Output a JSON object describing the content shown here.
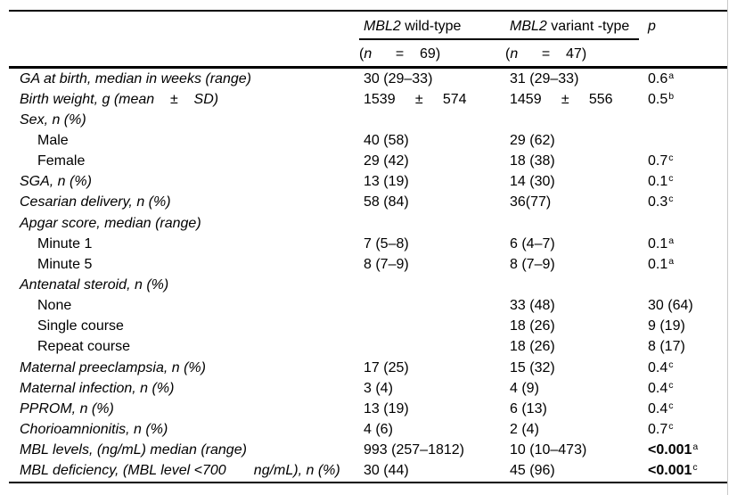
{
  "table": {
    "header": {
      "groups": [
        {
          "gene": "MBL2",
          "type": " wild-type",
          "count_open": "(",
          "count_n": "n",
          "count_rest": "      =    69)"
        },
        {
          "gene": "MBL2",
          "type": " variant -type",
          "count_open": "(",
          "count_n": "n",
          "count_rest": "      =    47)"
        }
      ],
      "p_label": "p"
    },
    "rows": [
      {
        "label": "GA at birth, median in weeks (range)",
        "indent": false,
        "wild": "30 (29–33)",
        "variant": "31 (29–33)",
        "p": "0.6",
        "sup": "a",
        "bold": false
      },
      {
        "label": "Birth weight, g (mean    ±    SD)",
        "indent": false,
        "wild": "1539     ±     574",
        "variant": "1459     ±     556",
        "p": "0.5",
        "sup": "b",
        "bold": false
      },
      {
        "label": "Sex, n (%)",
        "indent": false,
        "wild": "",
        "variant": "",
        "p": "",
        "sup": "",
        "bold": false
      },
      {
        "label": "Male",
        "indent": true,
        "wild": "40 (58)",
        "variant": "29 (62)",
        "p": "",
        "sup": "",
        "bold": false
      },
      {
        "label": "Female",
        "indent": true,
        "wild": "29 (42)",
        "variant": "18 (38)",
        "p": "0.7",
        "sup": "c",
        "bold": false
      },
      {
        "label": "SGA, n (%)",
        "indent": false,
        "wild": "13 (19)",
        "variant": "14 (30)",
        "p": "0.1",
        "sup": "c",
        "bold": false
      },
      {
        "label": "Cesarian delivery, n (%)",
        "indent": false,
        "wild": "58 (84)",
        "variant": "36(77)",
        "p": "0.3",
        "sup": "c",
        "bold": false
      },
      {
        "label": "Apgar score, median (range)",
        "indent": false,
        "wild": "",
        "variant": "",
        "p": "",
        "sup": "",
        "bold": false
      },
      {
        "label": "Minute 1",
        "indent": true,
        "wild": "7 (5–8)",
        "variant": "6 (4–7)",
        "p": "0.1",
        "sup": "a",
        "bold": false
      },
      {
        "label": "Minute 5",
        "indent": true,
        "wild": "8 (7–9)",
        "variant": "8 (7–9)",
        "p": "0.1",
        "sup": "a",
        "bold": false
      },
      {
        "label": "Antenatal steroid, n (%)",
        "indent": false,
        "wild": "",
        "variant": "",
        "p": "",
        "sup": "",
        "bold": false
      },
      {
        "label": "None",
        "indent": true,
        "wild": "",
        "variant": "33 (48)",
        "p": "30 (64)",
        "sup": "",
        "bold": false
      },
      {
        "label": "Single course",
        "indent": true,
        "wild": "",
        "variant": "18 (26)",
        "p": "9 (19)",
        "sup": "",
        "bold": false
      },
      {
        "label": "Repeat course",
        "indent": true,
        "wild": "",
        "variant": "18 (26)",
        "p": "8 (17)",
        "sup": "",
        "bold": false
      },
      {
        "label": "Maternal preeclampsia, n (%)",
        "indent": false,
        "wild": "17 (25)",
        "variant": "15 (32)",
        "p": "0.4",
        "sup": "c",
        "bold": false
      },
      {
        "label": "Maternal infection, n (%)",
        "indent": false,
        "wild": "3 (4)",
        "variant": "4 (9)",
        "p": "0.4",
        "sup": "c",
        "bold": false
      },
      {
        "label": "PPROM, n (%)",
        "indent": false,
        "wild": "13 (19)",
        "variant": "6 (13)",
        "p": "0.4",
        "sup": "c",
        "bold": false
      },
      {
        "label": "Chorioamnionitis, n (%)",
        "indent": false,
        "wild": "4 (6)",
        "variant": "2 (4)",
        "p": "0.7",
        "sup": "c",
        "bold": false
      },
      {
        "label": "MBL levels, (ng/mL) median (range)",
        "indent": false,
        "wild": "993 (257–1812)",
        "variant": "10 (10–473)",
        "p": "<0.001",
        "sup": "a",
        "bold": true
      },
      {
        "label": "MBL deficiency, (MBL level <700       ng/mL), n (%)",
        "indent": false,
        "wild": "30 (44)",
        "variant": "45 (96)",
        "p": "<0.001",
        "sup": "c",
        "bold": true
      }
    ]
  },
  "colors": {
    "text": "#000000",
    "rule": "#000000",
    "frame_edge": "#c9c9c9",
    "background": "#ffffff"
  }
}
